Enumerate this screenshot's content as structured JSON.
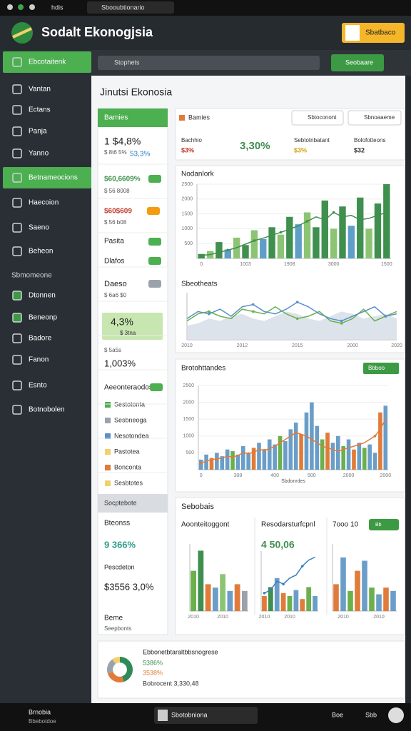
{
  "browser": {
    "tab": "hdis",
    "address": "Sbooubtionario"
  },
  "header": {
    "title": "Sodalt Ekonogjsia",
    "button": "Sbatbaco"
  },
  "sidebar": {
    "items": [
      "Ebcotaitenk",
      "Vantan",
      "Ectans",
      "Panja",
      "Yanno",
      "Betnameocions",
      "Haecoion",
      "Saeno",
      "Beheon"
    ],
    "section": "Sbmomeone",
    "items2": [
      "Dtonnen",
      "Beneonp",
      "Badore",
      "Fanon",
      "Esnto",
      "Botnobolen"
    ]
  },
  "search": {
    "placeholder": "Stophets",
    "button": "Seobaare"
  },
  "page": {
    "title": "Jinutsi Ekonosia",
    "charts_title": "Sebobais"
  },
  "left": {
    "header": "Bamies",
    "lines": [
      "1 $4,8%",
      "$ 8t6 5%",
      "53,3%",
      "$60,6609%",
      "$ 56 8008",
      "$60$609",
      "$ 56 b08",
      "Pasita",
      "Dlafos",
      "Daeso",
      "$ 6a6 $0",
      "4,3%",
      "$ 3tna",
      "$ 5a5s",
      "1,003%",
      "Aeeonteraodos",
      "Sestotonta",
      "Sesbneoga",
      "Nesotondea",
      "Pastotea",
      "Bonconta",
      "Sesbtotes",
      "Socptebote",
      "Bteonss",
      "9 366%",
      "Pescdeton",
      "$3556 3,0%",
      "Beme",
      "Seepbonts"
    ]
  },
  "strip": {
    "title": "Bamies",
    "buttons": [
      "Sbtoconont",
      "Sbnoaaeme"
    ],
    "stats": [
      {
        "label": "Bachhio",
        "value": "$3%"
      },
      {
        "value": "3,30%"
      },
      {
        "label": "Sebtotnbatant",
        "value": "$3%"
      },
      {
        "label": "Bolofotteons",
        "value": "$32"
      }
    ]
  },
  "bottom": {
    "title": "Ebbonetbtaraltbbsnogrese",
    "lines": [
      "5386%",
      "3538%",
      "Bobrocent 3,330,48"
    ]
  },
  "footer": {
    "left": [
      "Brnobia",
      "Bbebotdoe"
    ],
    "center": "Sbotobniona",
    "right": [
      "Boe",
      "Sbb"
    ]
  },
  "chart_data": [
    {
      "type": "bar",
      "title": "Nodanlork",
      "categories": [
        "0",
        null,
        null,
        null,
        null,
        "1003",
        null,
        null,
        null,
        null,
        "1908",
        null,
        null,
        null,
        null,
        "3000",
        null,
        null,
        null,
        null,
        null,
        "1500"
      ],
      "values": [
        150,
        250,
        550,
        300,
        700,
        450,
        950,
        650,
        1050,
        800,
        1400,
        1150,
        1550,
        1050,
        1950,
        1000,
        1750,
        1100,
        2050,
        1000,
        1850,
        2500
      ],
      "colors": [
        "#3f8f4f",
        "#8cc474",
        "#3f8f4f",
        "#5f9fc7",
        "#8cc474",
        "#3f8f4f",
        "#8cc474",
        "#5f9fc7",
        "#3f8f4f",
        "#8cc474",
        "#3f8f4f",
        "#5f9fc7",
        "#8cc474",
        "#3f8f4f",
        "#3f8f4f",
        "#8cc474",
        "#3f8f4f",
        "#5f9fc7",
        "#3f8f4f",
        "#8cc474",
        "#3f8f4f",
        "#3f8f4f"
      ],
      "line": {
        "color": "#3f8f4f",
        "values": [
          100,
          130,
          200,
          280,
          360,
          480,
          600,
          680,
          780,
          880,
          980,
          1100,
          1250,
          1400,
          1300,
          1550,
          1400,
          1450,
          1300,
          1350,
          1450,
          1550
        ]
      },
      "ylim": [
        0,
        2500
      ],
      "yticks": [
        500,
        1000,
        1500,
        2000,
        2500
      ],
      "grid": true
    },
    {
      "type": "line",
      "title": "Sbeotheats",
      "categories": [
        "2010",
        null,
        null,
        null,
        null,
        "2012",
        null,
        null,
        null,
        null,
        "2015",
        null,
        null,
        null,
        null,
        "2000",
        null,
        null,
        null,
        "2020"
      ],
      "series": [
        {
          "color": "#d3dce6",
          "fill": true,
          "values": [
            30,
            35,
            45,
            40,
            50,
            55,
            45,
            40,
            50,
            60,
            55,
            45,
            40,
            50,
            60,
            55,
            45,
            50,
            55,
            45
          ]
        },
        {
          "color": "#6ab04c",
          "values": [
            40,
            55,
            60,
            50,
            45,
            65,
            60,
            55,
            70,
            55,
            45,
            50,
            60,
            40,
            35,
            45,
            65,
            40,
            50,
            60
          ]
        },
        {
          "color": "#5a8fc7",
          "values": [
            45,
            60,
            55,
            65,
            50,
            70,
            75,
            60,
            55,
            65,
            80,
            70,
            55,
            45,
            40,
            50,
            60,
            70,
            50,
            55
          ]
        }
      ],
      "ylim": [
        0,
        100
      ]
    },
    {
      "type": "bar",
      "title": "Brotohttandes",
      "button": "Bbboo",
      "x_label": "Sbdonrdes",
      "categories": [
        "0",
        null,
        null,
        null,
        null,
        null,
        null,
        "308",
        null,
        null,
        null,
        null,
        null,
        null,
        "400",
        null,
        null,
        null,
        null,
        null,
        null,
        "500",
        null,
        null,
        null,
        null,
        null,
        null,
        "2000",
        null,
        null,
        null,
        null,
        null,
        null,
        "2000"
      ],
      "values": [
        300,
        450,
        350,
        500,
        400,
        600,
        550,
        450,
        700,
        500,
        650,
        800,
        600,
        900,
        750,
        1000,
        850,
        1200,
        1400,
        1050,
        1700,
        2000,
        1300,
        900,
        1100,
        800,
        1000,
        700,
        900,
        600,
        800,
        650,
        750,
        500,
        1700,
        1900
      ],
      "colors": [
        "#6a9ec8",
        "#6a9ec8",
        "#e07b39",
        "#6a9ec8",
        "#6a9ec8",
        "#6a9ec8",
        "#6ab04c",
        "#6a9ec8",
        "#6a9ec8",
        "#6a9ec8",
        "#e07b39",
        "#6a9ec8",
        "#6a9ec8",
        "#6a9ec8",
        "#6a9ec8",
        "#6ab04c",
        "#6a9ec8",
        "#6a9ec8",
        "#6a9ec8",
        "#e07b39",
        "#6a9ec8",
        "#6a9ec8",
        "#6a9ec8",
        "#6ab04c",
        "#e07b39",
        "#6a9ec8",
        "#6a9ec8",
        "#6ab04c",
        "#6a9ec8",
        "#e07b39",
        "#6a9ec8",
        "#6ab04c",
        "#6a9ec8",
        "#6a9ec8",
        "#e07b39",
        "#6a9ec8"
      ],
      "line": {
        "color": "#e07b39",
        "values": [
          200,
          250,
          300,
          320,
          350,
          400,
          380,
          420,
          500,
          480,
          520,
          600,
          580,
          620,
          700,
          800,
          900,
          1000,
          1100,
          1050,
          1000,
          900,
          800,
          700,
          650,
          600,
          550,
          600,
          650,
          700,
          750,
          800,
          900,
          1000,
          1200,
          1500
        ]
      },
      "ylim": [
        0,
        2500
      ],
      "yticks": [
        500,
        1000,
        1500,
        2000,
        2500
      ],
      "grid": true
    },
    {
      "type": "bar",
      "title": "Aoonteitoggont",
      "categories": [
        "2010",
        null,
        null,
        null,
        "2010",
        null,
        null,
        null
      ],
      "values": [
        60,
        90,
        40,
        35,
        55,
        30,
        40,
        30
      ],
      "colors": [
        "#6ab04c",
        "#3f8f4f",
        "#e07b39",
        "#6a9ec8",
        "#8cc474",
        "#6a9ec8",
        "#e07b39",
        "#9aa3ab"
      ],
      "ylim": [
        0,
        100
      ]
    },
    {
      "type": "bar",
      "title": "Resodarsturfcpnl",
      "headline": "4 50,06",
      "categories": [
        "2010",
        null,
        null,
        null,
        "2010",
        null,
        null,
        null,
        null
      ],
      "values": [
        25,
        40,
        55,
        30,
        25,
        35,
        20,
        40,
        25
      ],
      "colors": [
        "#e07b39",
        "#3f8f4f",
        "#6a9ec8",
        "#e07b39",
        "#6ab04c",
        "#6a9ec8",
        "#e07b39",
        "#6ab04c",
        "#6a9ec8"
      ],
      "line": {
        "color": "#3a7fc0",
        "values": [
          30,
          35,
          50,
          45,
          55,
          60,
          75,
          85,
          90
        ]
      },
      "ylim": [
        0,
        100
      ]
    },
    {
      "type": "bar",
      "title": "7ooo 10",
      "toggle": "Bb",
      "categories": [
        null,
        "2010",
        null,
        null,
        null,
        null,
        "2010",
        null,
        null
      ],
      "values": [
        40,
        80,
        30,
        60,
        75,
        35,
        25,
        35,
        30
      ],
      "colors": [
        "#e07b39",
        "#6a9ec8",
        "#6ab04c",
        "#e07b39",
        "#6a9ec8",
        "#6ab04c",
        "#6a9ec8",
        "#e07b39",
        "#6a9ec8"
      ],
      "ylim": [
        0,
        100
      ]
    },
    {
      "type": "pie",
      "values": [
        45,
        25,
        20,
        10
      ],
      "colors": [
        "#2e8b57",
        "#e07b39",
        "#9aa3ab",
        "#f2d06b"
      ]
    }
  ]
}
